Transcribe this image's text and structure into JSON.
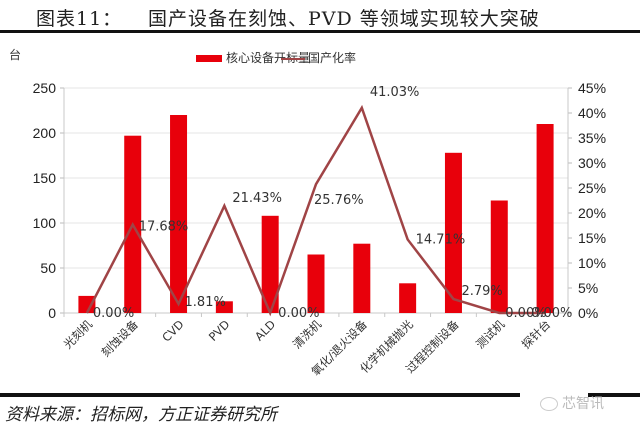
{
  "header": {
    "figure_number": "图表11：",
    "title": "国产设备在刻蚀、PVD 等领域实现较大突破"
  },
  "footer": {
    "source": "资料来源：招标网，方正证券研究所",
    "watermark": "芯智讯"
  },
  "chart_data": {
    "type": "bar+line",
    "title": "国产设备在刻蚀、PVD 等领域实现较大突破",
    "y_unit_label": "台",
    "categories": [
      "光刻机",
      "刻蚀设备",
      "CVD",
      "PVD",
      "ALD",
      "清洗机",
      "氧化/退火设备",
      "化学机械抛光",
      "过程控制设备",
      "测试机",
      "探针台"
    ],
    "series": [
      {
        "name": "核心设备开标量",
        "type": "bar",
        "axis": "left",
        "color": "#e8000b",
        "values": [
          19,
          197,
          220,
          13,
          108,
          65,
          77,
          33,
          178,
          125,
          210
        ]
      },
      {
        "name": "国产化率",
        "type": "line",
        "axis": "right",
        "color": "#a04446",
        "values": [
          0.0,
          17.68,
          1.81,
          21.43,
          0.0,
          25.76,
          41.03,
          14.71,
          2.79,
          0.0,
          0.0
        ],
        "labels": [
          "0.00%",
          "17.68%",
          "1.81%",
          "21.43%",
          "0.00%",
          "25.76%",
          "41.03%",
          "14.71%",
          "2.79%",
          "0.00%",
          "0.00%"
        ]
      }
    ],
    "left_axis": {
      "ylim": [
        0,
        250
      ],
      "ticks": [
        "0",
        "50",
        "100",
        "150",
        "200",
        "250"
      ]
    },
    "right_axis": {
      "ylim": [
        0,
        45
      ],
      "ticks": [
        "0%",
        "5%",
        "10%",
        "15%",
        "20%",
        "25%",
        "30%",
        "35%",
        "40%",
        "45%"
      ]
    },
    "grid": true,
    "legend": {
      "position": "top",
      "entries": [
        "核心设备开标量",
        "国产化率"
      ]
    }
  }
}
